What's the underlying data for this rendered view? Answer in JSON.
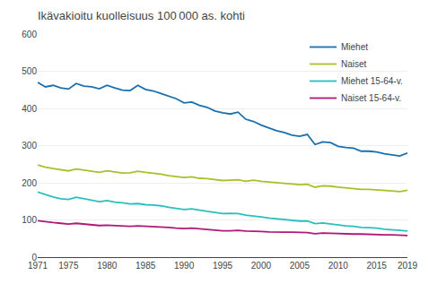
{
  "chart_data": {
    "type": "line",
    "title": "Ikävakioitu kuolleisuus 100 000 as. kohti",
    "x": [
      1971,
      1972,
      1973,
      1974,
      1975,
      1976,
      1977,
      1978,
      1979,
      1980,
      1981,
      1982,
      1983,
      1984,
      1985,
      1986,
      1987,
      1988,
      1989,
      1990,
      1991,
      1992,
      1993,
      1994,
      1995,
      1996,
      1997,
      1998,
      1999,
      2000,
      2001,
      2002,
      2003,
      2004,
      2005,
      2006,
      2007,
      2008,
      2009,
      2010,
      2011,
      2012,
      2013,
      2014,
      2015,
      2016,
      2017,
      2018,
      2019
    ],
    "series": [
      {
        "name": "Miehet",
        "color": "#1a6faf",
        "values": [
          470,
          458,
          462,
          455,
          452,
          467,
          460,
          458,
          453,
          462,
          455,
          449,
          448,
          462,
          451,
          447,
          440,
          433,
          426,
          415,
          417,
          408,
          403,
          393,
          388,
          385,
          390,
          371,
          365,
          355,
          348,
          340,
          335,
          328,
          325,
          330,
          303,
          310,
          308,
          298,
          295,
          293,
          285,
          285,
          283,
          278,
          275,
          272,
          280
        ]
      },
      {
        "name": "Naiset",
        "color": "#aabf2a",
        "values": [
          248,
          242,
          238,
          235,
          232,
          237,
          234,
          231,
          228,
          232,
          229,
          226,
          227,
          231,
          228,
          226,
          223,
          219,
          216,
          214,
          216,
          212,
          211,
          208,
          206,
          207,
          208,
          204,
          207,
          204,
          202,
          200,
          199,
          197,
          195,
          196,
          188,
          192,
          191,
          188,
          186,
          185,
          182,
          182,
          181,
          179,
          178,
          176,
          180
        ]
      },
      {
        "name": "Miehet 15-64-v.",
        "color": "#2abfbf",
        "values": [
          175,
          168,
          162,
          157,
          155,
          161,
          157,
          153,
          149,
          152,
          148,
          146,
          143,
          144,
          141,
          140,
          138,
          134,
          131,
          128,
          130,
          126,
          123,
          120,
          117,
          118,
          117,
          113,
          111,
          108,
          105,
          103,
          101,
          99,
          97,
          97,
          90,
          92,
          89,
          86,
          84,
          83,
          80,
          79,
          78,
          75,
          74,
          72,
          70
        ]
      },
      {
        "name": "Naiset 15-64-v.",
        "color": "#b01878",
        "values": [
          98,
          95,
          93,
          91,
          89,
          91,
          89,
          87,
          85,
          86,
          85,
          84,
          83,
          84,
          83,
          82,
          82,
          80,
          78,
          77,
          78,
          76,
          74,
          73,
          71,
          71,
          72,
          70,
          70,
          69,
          68,
          67,
          67,
          67,
          66,
          66,
          63,
          65,
          64,
          63,
          63,
          62,
          62,
          61,
          61,
          60,
          60,
          59,
          58
        ]
      }
    ],
    "xlim": [
      1971,
      2019
    ],
    "xticks": [
      1971,
      1975,
      1980,
      1985,
      1990,
      1995,
      2000,
      2005,
      2010,
      2015,
      2019
    ],
    "ylim": [
      0,
      600
    ],
    "yticks": [
      0,
      100,
      200,
      300,
      400,
      500,
      600
    ],
    "grid": true,
    "legend": "upper right"
  }
}
